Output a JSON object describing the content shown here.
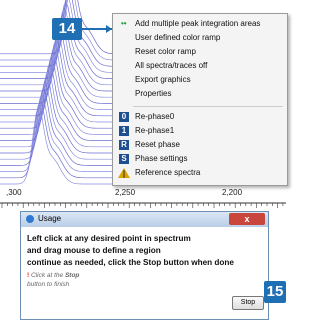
{
  "callouts": [
    "14",
    "15"
  ],
  "menu": {
    "items": [
      "Add multiple peak integration areas",
      "User defined color ramp",
      "Reset color ramp",
      "All spectra/traces off",
      "Export graphics",
      "Properties"
    ],
    "phase_items": [
      {
        "icon": "0",
        "label": "Re-phase0"
      },
      {
        "icon": "1",
        "label": "Re-phase1"
      },
      {
        "icon": "R",
        "label": "Reset phase"
      },
      {
        "icon": "S",
        "label": "Phase settings"
      }
    ],
    "reference": "Reference spectra"
  },
  "axis": {
    "labels": [
      ",300",
      "2,250",
      "2,200"
    ]
  },
  "dialog": {
    "title": "Usage",
    "close": "x",
    "lines": [
      "Left click at any desired point in spectrum",
      "and drag mouse to define a region",
      "continue as needed, click the Stop button when done"
    ],
    "note": {
      "before": "Click at the ",
      "bold": "Stop",
      "after": " button to finish"
    },
    "button": "Stop"
  }
}
